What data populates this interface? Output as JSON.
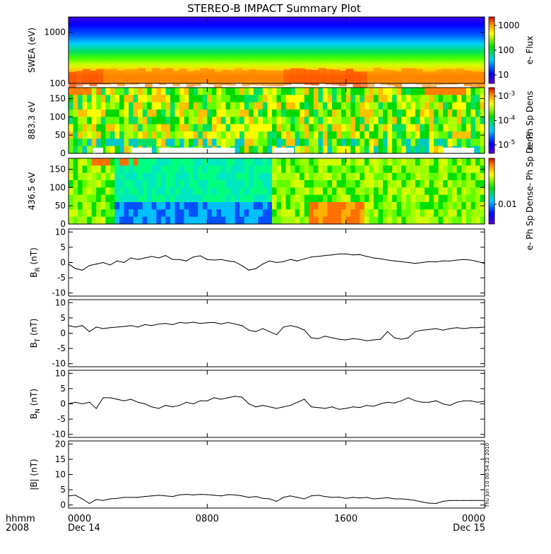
{
  "title": "STEREO-B IMPACT Summary Plot",
  "timestamp": "Thu Jun 10 00:54:22 2010",
  "x_axis": {
    "row_label": "hhmm",
    "year": "2008",
    "ticks": [
      {
        "label": "0000",
        "hour": 0,
        "date": "Dec 14"
      },
      {
        "label": "0800",
        "hour": 8,
        "date": ""
      },
      {
        "label": "1600",
        "hour": 16,
        "date": ""
      },
      {
        "label": "0000",
        "hour": 24,
        "date": "Dec 15"
      }
    ],
    "range_hours": [
      0,
      24
    ]
  },
  "chart_data": [
    {
      "type": "heatmap",
      "id": "swea",
      "ylabel": "SWEA (eV)",
      "y_ticks": [
        "1000",
        "100"
      ],
      "y_scale": "log",
      "ylim": [
        100,
        2000
      ],
      "colorbar": {
        "label": "e- Flux",
        "ticks": [
          "1000",
          "100",
          "10"
        ],
        "scale": "log"
      }
    },
    {
      "type": "heatmap",
      "id": "pad_883",
      "ylabel": "883.3 eV",
      "y_ticks": [
        "150",
        "100",
        "50",
        "0"
      ],
      "ylim": [
        0,
        180
      ],
      "colorbar": {
        "label": "e- Ph Sp Dens",
        "ticks": [
          "10",
          "10",
          "10"
        ],
        "tick_exponents": [
          "-3",
          "-4",
          "-5"
        ],
        "scale": "log"
      }
    },
    {
      "type": "heatmap",
      "id": "pad_436",
      "ylabel": "436.5 eV",
      "y_ticks": [
        "150",
        "100",
        "50",
        "0"
      ],
      "ylim": [
        0,
        180
      ],
      "colorbar": {
        "label": "e- Ph Sp Dense- Ph Sp Dens",
        "ticks": [
          "0.01"
        ],
        "scale": "log"
      }
    },
    {
      "type": "line",
      "id": "br",
      "ylabel": "B",
      "ylabel_sub": "R",
      "ylabel_unit": " (nT)",
      "y_ticks": [
        "10",
        "5",
        "0",
        "-5",
        "-10"
      ],
      "ylim": [
        -11,
        11
      ],
      "x": [
        0,
        0.4,
        0.8,
        1.2,
        1.6,
        2,
        2.4,
        2.8,
        3.2,
        3.6,
        4,
        4.4,
        4.8,
        5.2,
        5.6,
        6,
        6.4,
        6.8,
        7.2,
        7.6,
        8,
        8.4,
        8.8,
        9.2,
        9.6,
        10,
        10.4,
        10.8,
        11.2,
        11.6,
        12,
        12.4,
        12.8,
        13.2,
        13.6,
        14,
        14.4,
        14.8,
        15.2,
        15.6,
        16,
        16.4,
        16.8,
        17.2,
        17.6,
        18,
        18.4,
        18.8,
        19.2,
        19.6,
        20,
        20.4,
        20.8,
        21.2,
        21.6,
        22,
        22.4,
        22.8,
        23.2,
        23.6,
        24
      ],
      "values": [
        -0.5,
        -2.0,
        -2.5,
        -1.0,
        -0.5,
        0.0,
        -0.8,
        0.5,
        0.0,
        1.5,
        1.0,
        1.5,
        2.0,
        1.5,
        2.3,
        1.0,
        1.0,
        0.5,
        1.8,
        2.2,
        1.0,
        0.8,
        1.0,
        0.5,
        0.2,
        -1.0,
        -2.5,
        -2.0,
        -0.5,
        0.5,
        0.0,
        0.3,
        1.0,
        0.5,
        1.2,
        1.8,
        2.0,
        2.3,
        2.5,
        2.8,
        2.8,
        2.5,
        2.6,
        2.0,
        1.5,
        1.2,
        0.8,
        0.5,
        0.3,
        0.0,
        -0.3,
        0.0,
        0.3,
        0.2,
        0.5,
        0.5,
        0.8,
        1.0,
        0.8,
        0.3,
        -0.3
      ]
    },
    {
      "type": "line",
      "id": "bt",
      "ylabel": "B",
      "ylabel_sub": "T",
      "ylabel_unit": " (nT)",
      "y_ticks": [
        "10",
        "5",
        "0",
        "-5",
        "-10"
      ],
      "ylim": [
        -11,
        11
      ],
      "x": [
        0,
        0.4,
        0.8,
        1.2,
        1.6,
        2,
        2.4,
        2.8,
        3.2,
        3.6,
        4,
        4.4,
        4.8,
        5.2,
        5.6,
        6,
        6.4,
        6.8,
        7.2,
        7.6,
        8,
        8.4,
        8.8,
        9.2,
        9.6,
        10,
        10.4,
        10.8,
        11.2,
        11.6,
        12,
        12.4,
        12.8,
        13.2,
        13.6,
        14,
        14.4,
        14.8,
        15.2,
        15.6,
        16,
        16.4,
        16.8,
        17.2,
        17.6,
        18,
        18.4,
        18.8,
        19.2,
        19.6,
        20,
        20.4,
        20.8,
        21.2,
        21.6,
        22,
        22.4,
        22.8,
        23.2,
        23.6,
        24
      ],
      "values": [
        2.5,
        2.0,
        2.5,
        0.5,
        2.0,
        1.5,
        1.8,
        2.0,
        2.2,
        2.5,
        2.0,
        2.8,
        2.5,
        3.0,
        3.2,
        2.8,
        3.5,
        3.3,
        3.6,
        3.2,
        3.4,
        3.5,
        3.0,
        3.5,
        3.0,
        2.5,
        1.0,
        0.5,
        1.5,
        0.5,
        -0.5,
        2.0,
        2.5,
        2.0,
        1.0,
        -1.5,
        -1.8,
        -1.0,
        -1.5,
        -2.0,
        -2.2,
        -1.8,
        -2.0,
        -2.5,
        -2.2,
        -2.0,
        0.5,
        -1.5,
        -2.0,
        -1.5,
        0.5,
        1.0,
        1.2,
        1.5,
        1.0,
        1.5,
        1.8,
        1.5,
        1.8,
        1.8,
        2.0
      ]
    },
    {
      "type": "line",
      "id": "bn",
      "ylabel": "B",
      "ylabel_sub": "N",
      "ylabel_unit": " (nT)",
      "y_ticks": [
        "10",
        "5",
        "0",
        "-5",
        "-10"
      ],
      "ylim": [
        -11,
        11
      ],
      "x": [
        0,
        0.4,
        0.8,
        1.2,
        1.6,
        2,
        2.4,
        2.8,
        3.2,
        3.6,
        4,
        4.4,
        4.8,
        5.2,
        5.6,
        6,
        6.4,
        6.8,
        7.2,
        7.6,
        8,
        8.4,
        8.8,
        9.2,
        9.6,
        10,
        10.4,
        10.8,
        11.2,
        11.6,
        12,
        12.4,
        12.8,
        13.2,
        13.6,
        14,
        14.4,
        14.8,
        15.2,
        15.6,
        16,
        16.4,
        16.8,
        17.2,
        17.6,
        18,
        18.4,
        18.8,
        19.2,
        19.6,
        20,
        20.4,
        20.8,
        21.2,
        21.6,
        22,
        22.4,
        22.8,
        23.2,
        23.6,
        24
      ],
      "values": [
        0.0,
        0.5,
        0.0,
        0.5,
        -1.5,
        2.0,
        2.0,
        1.5,
        1.0,
        1.5,
        0.5,
        0.0,
        -1.0,
        -1.5,
        -0.5,
        -1.0,
        -0.5,
        0.5,
        0.0,
        1.0,
        1.0,
        2.0,
        1.5,
        2.0,
        2.5,
        2.2,
        0.0,
        -1.0,
        -0.5,
        -1.0,
        -1.5,
        -1.0,
        -0.5,
        0.5,
        1.5,
        -1.0,
        -1.2,
        -1.5,
        -1.0,
        -1.8,
        -1.5,
        -1.0,
        -1.2,
        -0.5,
        -0.8,
        0.0,
        0.5,
        0.3,
        1.0,
        2.0,
        1.0,
        0.5,
        0.5,
        1.0,
        0.0,
        -0.5,
        0.5,
        1.0,
        1.0,
        0.5,
        0.8
      ]
    },
    {
      "type": "line",
      "id": "bmag",
      "ylabel": "|B| (nT)",
      "y_ticks": [
        "20",
        "15",
        "10",
        "5",
        "0"
      ],
      "ylim": [
        -1,
        21
      ],
      "x": [
        0,
        0.4,
        0.8,
        1.2,
        1.6,
        2,
        2.4,
        2.8,
        3.2,
        3.6,
        4,
        4.4,
        4.8,
        5.2,
        5.6,
        6,
        6.4,
        6.8,
        7.2,
        7.6,
        8,
        8.4,
        8.8,
        9.2,
        9.6,
        10,
        10.4,
        10.8,
        11.2,
        11.6,
        12,
        12.4,
        12.8,
        13.2,
        13.6,
        14,
        14.4,
        14.8,
        15.2,
        15.6,
        16,
        16.4,
        16.8,
        17.2,
        17.6,
        18,
        18.4,
        18.8,
        19.2,
        19.6,
        20,
        20.4,
        20.8,
        21.2,
        21.6,
        22,
        22.4,
        22.8,
        23.2,
        23.6,
        24
      ],
      "values": [
        3.0,
        3.2,
        2.0,
        0.5,
        1.8,
        1.5,
        2.0,
        2.2,
        2.5,
        2.5,
        2.5,
        2.8,
        3.0,
        3.2,
        3.0,
        2.8,
        3.3,
        3.5,
        3.3,
        3.5,
        3.4,
        3.2,
        3.0,
        3.4,
        3.3,
        3.0,
        2.5,
        2.8,
        2.2,
        2.0,
        1.2,
        2.5,
        3.0,
        2.5,
        2.0,
        3.0,
        3.2,
        2.8,
        2.5,
        2.6,
        2.2,
        2.5,
        2.3,
        2.5,
        2.0,
        2.2,
        2.4,
        2.0,
        2.0,
        1.8,
        1.5,
        1.0,
        0.6,
        0.5,
        1.2,
        1.5,
        1.5,
        1.5,
        1.5,
        1.5,
        1.5
      ]
    }
  ]
}
